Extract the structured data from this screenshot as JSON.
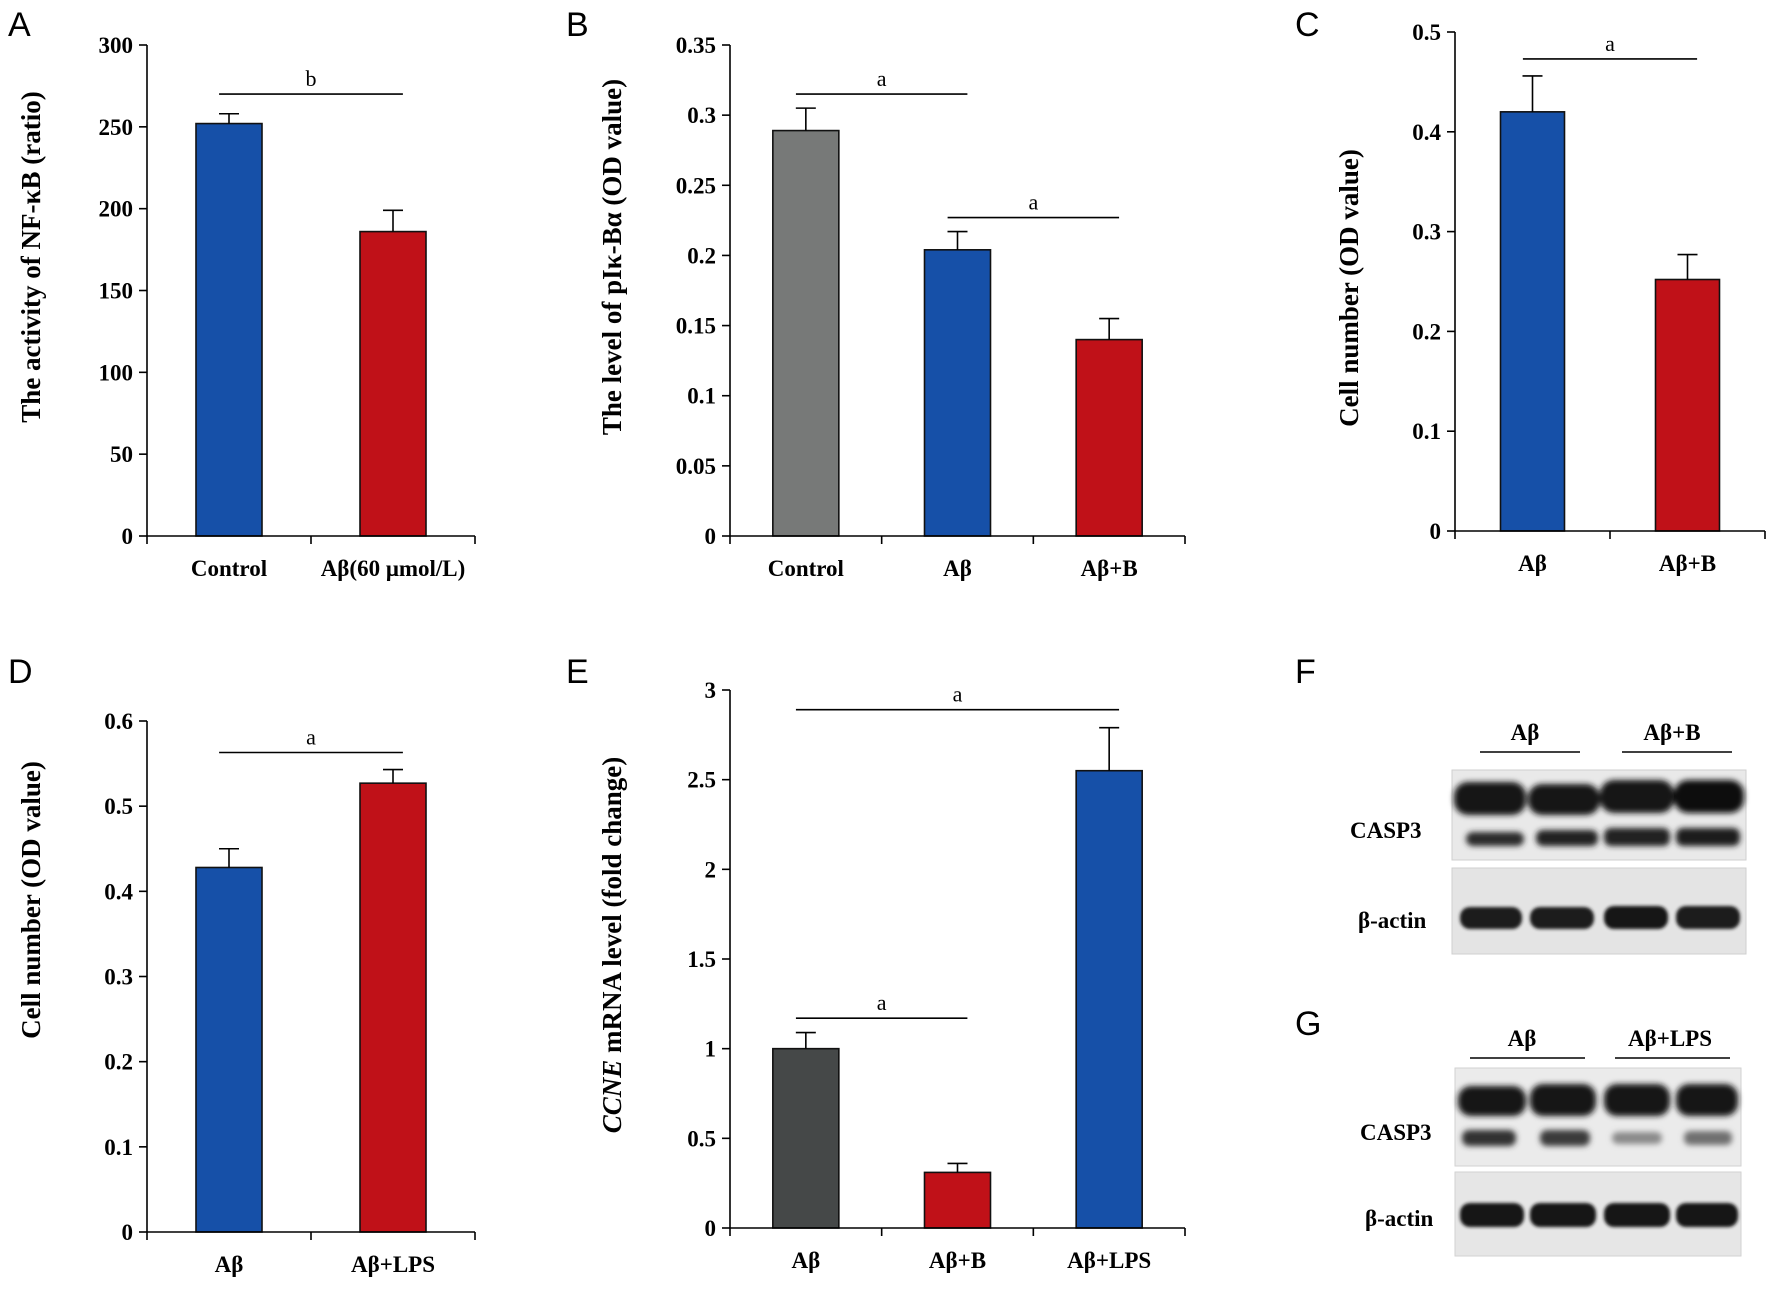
{
  "colors": {
    "blue": "#1650a8",
    "red": "#c01118",
    "gray": "#777978",
    "darkgray": "#454848"
  },
  "chart_data": [
    {
      "panel": "A",
      "type": "bar",
      "categories": [
        "Control",
        "Aβ(60 μmol/L)"
      ],
      "values": [
        252,
        186
      ],
      "errors": [
        6,
        13
      ],
      "colors": [
        "blue",
        "red"
      ],
      "ylabel": "The activity of NF-κB (ratio)",
      "ylabel_italic_prefix": "",
      "ylim": [
        0,
        300
      ],
      "yticks": [
        "0",
        "50",
        "100",
        "150",
        "200",
        "250",
        "300"
      ],
      "significance": [
        {
          "from": 0,
          "to": 1,
          "label": "b",
          "y": 270
        }
      ]
    },
    {
      "panel": "B",
      "type": "bar",
      "categories": [
        "Control",
        "Aβ",
        "Aβ+B"
      ],
      "values": [
        0.289,
        0.204,
        0.14
      ],
      "errors": [
        0.016,
        0.013,
        0.015
      ],
      "colors": [
        "gray",
        "blue",
        "red"
      ],
      "ylabel": "The level of pIκ-Bα (OD value)",
      "ylabel_italic_prefix": "",
      "ylim": [
        0,
        0.35
      ],
      "yticks": [
        "0",
        "0.05",
        "0.1",
        "0.15",
        "0.2",
        "0.25",
        "0.3",
        "0.35"
      ],
      "significance": [
        {
          "from": 0,
          "to": 1,
          "label": "a",
          "y": 0.315
        },
        {
          "from": 1,
          "to": 2,
          "label": "a",
          "y": 0.227
        }
      ]
    },
    {
      "panel": "C",
      "type": "bar",
      "categories": [
        "Aβ",
        "Aβ+B"
      ],
      "values": [
        0.42,
        0.252
      ],
      "errors": [
        0.036,
        0.025
      ],
      "colors": [
        "blue",
        "red"
      ],
      "ylabel": "Cell number (OD value)",
      "ylabel_italic_prefix": "",
      "ylim": [
        0,
        0.5
      ],
      "yticks": [
        "0",
        "0.1",
        "0.2",
        "0.3",
        "0.4",
        "0.5"
      ],
      "significance": [
        {
          "from": 0,
          "to": 1,
          "label": "a",
          "y": 0.473
        }
      ]
    },
    {
      "panel": "D",
      "type": "bar",
      "categories": [
        "Aβ",
        "Aβ+LPS"
      ],
      "values": [
        0.428,
        0.527
      ],
      "errors": [
        0.022,
        0.016
      ],
      "colors": [
        "blue",
        "red"
      ],
      "ylabel": "Cell number (OD value)",
      "ylabel_italic_prefix": "",
      "ylim": [
        0,
        0.6
      ],
      "yticks": [
        "0",
        "0.1",
        "0.2",
        "0.3",
        "0.4",
        "0.5",
        "0.6"
      ],
      "significance": [
        {
          "from": 0,
          "to": 1,
          "label": "a",
          "y": 0.563
        }
      ]
    },
    {
      "panel": "E",
      "type": "bar",
      "categories": [
        "Aβ",
        "Aβ+B",
        "Aβ+LPS"
      ],
      "values": [
        1.0,
        0.31,
        2.55
      ],
      "errors": [
        0.09,
        0.05,
        0.24
      ],
      "colors": [
        "darkgray",
        "red",
        "blue"
      ],
      "ylabel": "mRNA level (fold change)",
      "ylabel_italic_prefix": "CCNE",
      "ylim": [
        0,
        3
      ],
      "yticks": [
        "0",
        "0.5",
        "1",
        "1.5",
        "2",
        "2.5",
        "3"
      ],
      "significance": [
        {
          "from": 0,
          "to": 2,
          "label": "a",
          "y": 2.89
        },
        {
          "from": 0,
          "to": 1,
          "label": "a",
          "y": 1.17
        }
      ]
    }
  ],
  "blots": [
    {
      "panel": "F",
      "groups": [
        "Aβ",
        "Aβ+B"
      ],
      "rows": [
        "CASP3",
        "β-actin"
      ]
    },
    {
      "panel": "G",
      "groups": [
        "Aβ",
        "Aβ+LPS"
      ],
      "rows": [
        "CASP3",
        "β-actin"
      ]
    }
  ]
}
